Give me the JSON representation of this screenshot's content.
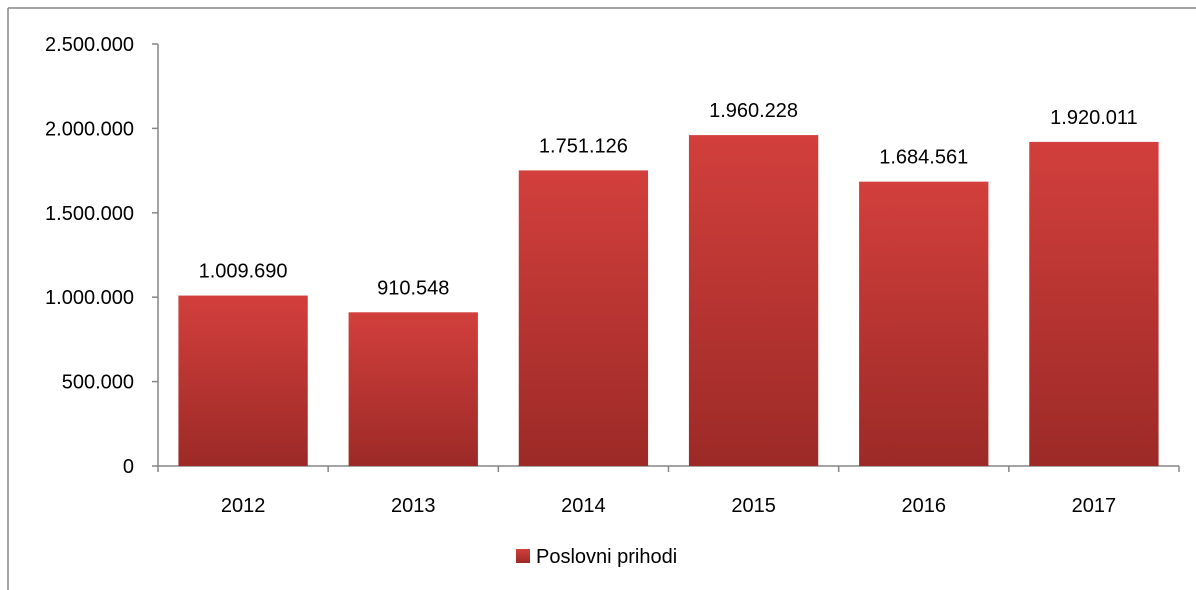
{
  "chart_data": {
    "type": "bar",
    "categories": [
      "2012",
      "2013",
      "2014",
      "2015",
      "2016",
      "2017"
    ],
    "series": [
      {
        "name": "Poslovni prihodi",
        "values": [
          1009690,
          910548,
          1751126,
          1960228,
          1684561,
          1920011
        ]
      }
    ],
    "data_labels": [
      "1.009.690",
      "910.548",
      "1.751.126",
      "1.960.228",
      "1.684.561",
      "1.920.011"
    ],
    "y_ticks": [
      0,
      500000,
      1000000,
      1500000,
      2000000,
      2500000
    ],
    "y_tick_labels": [
      "0",
      "500.000",
      "1.000.000",
      "1.500.000",
      "2.000.000",
      "2.500.000"
    ],
    "ylim": [
      0,
      2500000
    ],
    "title": "",
    "xlabel": "",
    "ylabel": "",
    "grid": false,
    "legend_position": "bottom",
    "colors": {
      "bar_top": "#d23f3c",
      "bar_bottom": "#9c2a27",
      "axis": "#868686",
      "frame": "#868686"
    }
  }
}
